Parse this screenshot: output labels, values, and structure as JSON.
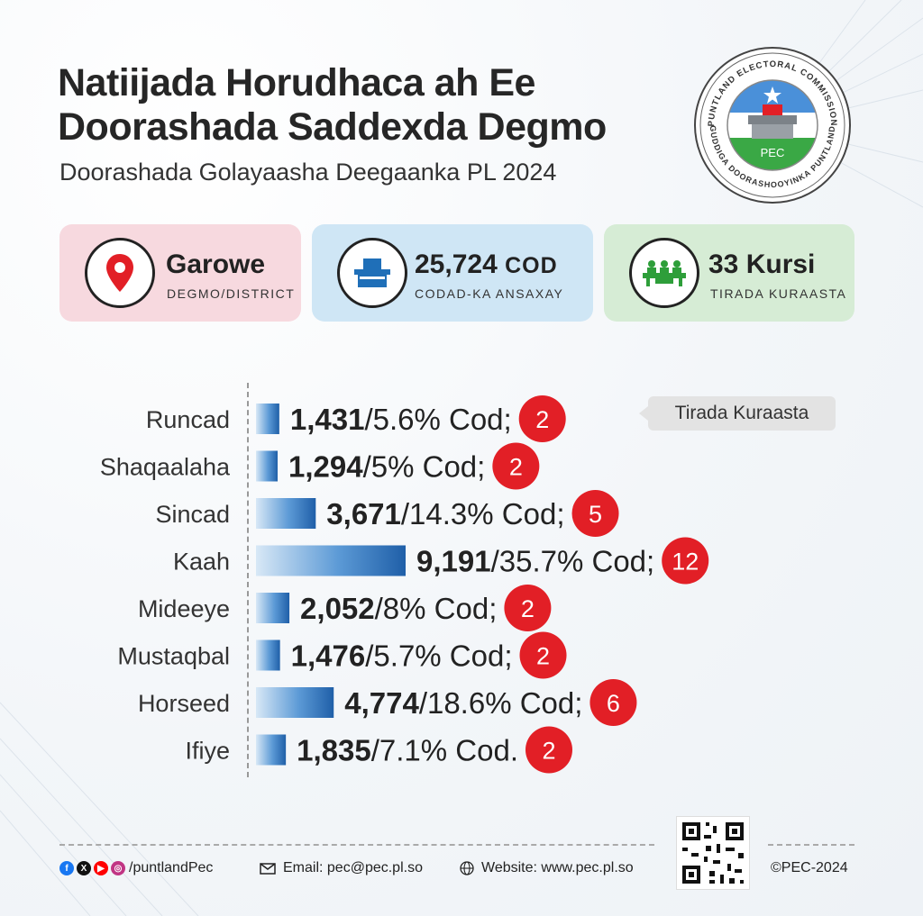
{
  "title_line1": "Natiijada Horudhaca ah Ee",
  "title_line2": "Doorashada Saddexda Degmo",
  "subtitle": "Doorashada Golayaasha Deegaanka PL 2024",
  "logo": {
    "top_text": "PUNTLAND ELECTORAL COMMISSION",
    "bottom_text": "GUDDIGA DOORASHOOYINKA PUNTLAND",
    "center_text": "PEC"
  },
  "cards": {
    "district": {
      "value": "Garowe",
      "label": "DEGMO/DISTRICT",
      "color": "#f7d9df",
      "icon": "location-pin-icon"
    },
    "votes": {
      "value": "25,724",
      "unit": "COD",
      "label": "CODAD-KA ANSAXAY",
      "color": "#cfe6f5",
      "icon": "ballot-box-icon"
    },
    "seats": {
      "value": "33 Kursi",
      "label": "TIRADA KURAASTA",
      "color": "#d6ecd5",
      "icon": "council-seats-icon"
    }
  },
  "tooltip": "Tirada Kuraasta",
  "chart_data": {
    "type": "bar",
    "orientation": "horizontal",
    "categories": [
      "Runcad",
      "Shaqaalaha",
      "Sincad",
      "Kaah",
      "Mideeye",
      "Mustaqbal",
      "Horseed",
      "Ifiye"
    ],
    "values": [
      1431,
      1294,
      3671,
      9191,
      2052,
      1476,
      4774,
      1835
    ],
    "value_labels": [
      "1,431",
      "1,294",
      "3,671",
      "9,191",
      "2,052",
      "1,476",
      "4,774",
      "1,835"
    ],
    "percent_labels": [
      "/5.6% Cod;",
      "/5% Cod;",
      "/14.3% Cod;",
      "/35.7% Cod;",
      "/8% Cod;",
      "/5.7% Cod;",
      "/18.6% Cod;",
      "/7.1% Cod."
    ],
    "seats": [
      "2",
      "2",
      "5",
      "12",
      "2",
      "2",
      "6",
      "2"
    ],
    "bar_color": "#1f6fb8",
    "seat_badge_color": "#e21f26"
  },
  "footer": {
    "social_handle": "/puntlandPec",
    "email": "Email: pec@pec.pl.so",
    "website": "Website: www.pec.pl.so",
    "copyright": "©PEC-2024"
  }
}
